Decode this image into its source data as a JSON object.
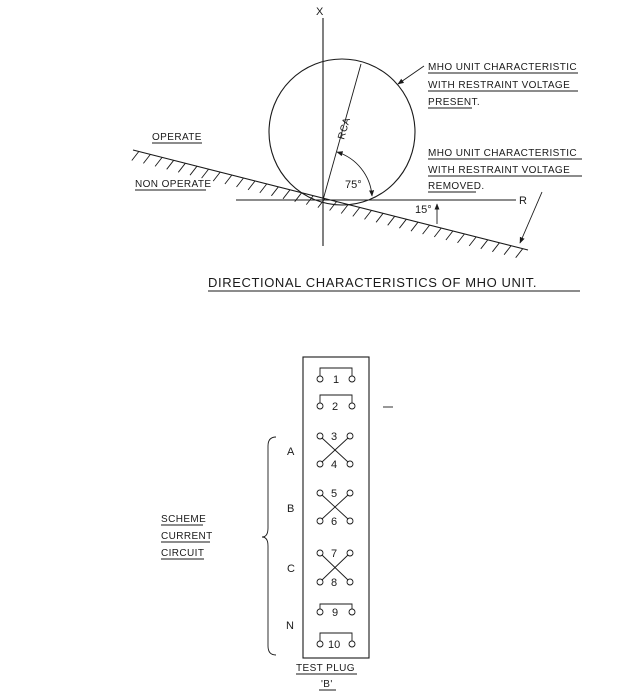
{
  "diagram": {
    "axis_x_label": "X",
    "axis_r_label": "R",
    "rca_label": "RCA",
    "angle_75": "75°",
    "angle_15": "15°",
    "operate_label": "OPERATE",
    "non_operate_label": "NON OPERATE",
    "annotation_present": [
      "MHO UNIT CHARACTERISTIC",
      "WITH RESTRAINT VOLTAGE",
      "PRESENT."
    ],
    "annotation_removed": [
      "MHO UNIT CHARACTERISTIC",
      "WITH RESTRAINT VOLTAGE",
      "REMOVED."
    ],
    "title": "DIRECTIONAL CHARACTERISTICS OF MHO UNIT."
  },
  "test_plug": {
    "terminals": [
      "1",
      "2",
      "3",
      "4",
      "5",
      "6",
      "7",
      "8",
      "9",
      "10"
    ],
    "phase_labels": [
      "A",
      "B",
      "C",
      "N"
    ],
    "scheme_label": [
      "SCHEME",
      "CURRENT",
      "CIRCUIT"
    ],
    "caption": "TEST PLUG",
    "caption_sub": "'B'"
  }
}
